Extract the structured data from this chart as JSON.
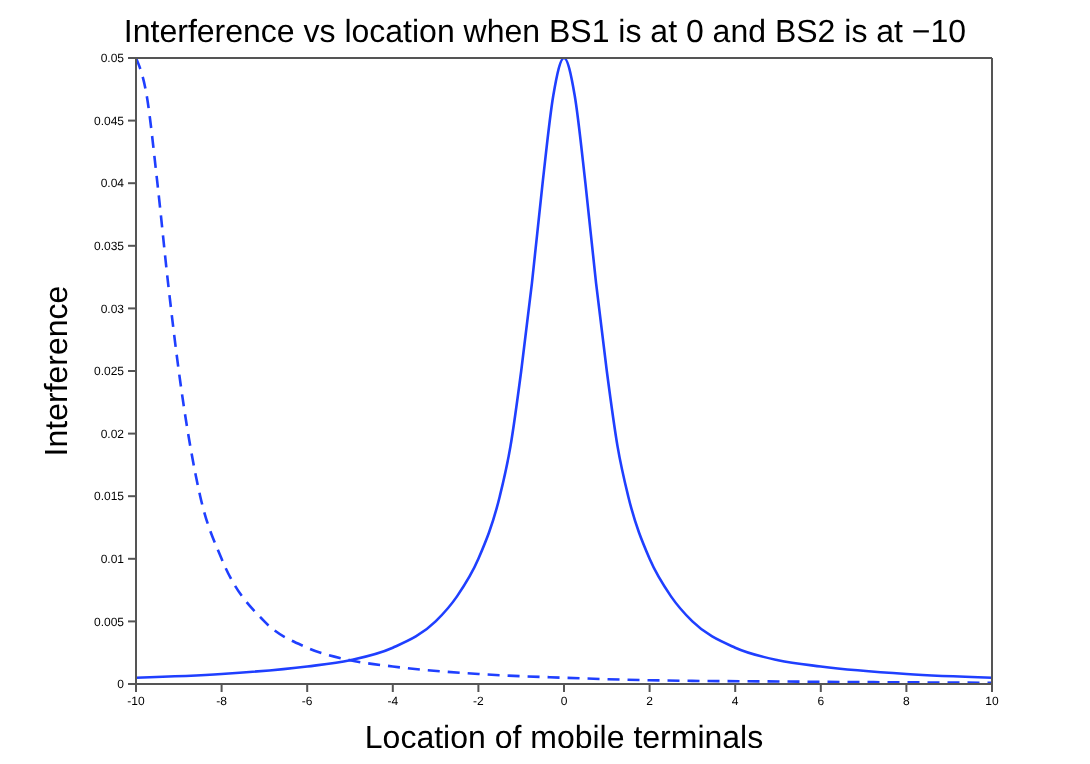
{
  "chart_data": {
    "type": "line",
    "title": "Interference vs location when BS1 is at 0 and BS2 is at −10",
    "xlabel": "Location of mobile terminals",
    "ylabel": "Interference",
    "xlim": [
      -10,
      10
    ],
    "xticks": [
      -10,
      -8,
      -6,
      -4,
      -2,
      0,
      2,
      4,
      6,
      8,
      10
    ],
    "ylim": [
      0,
      0.05
    ],
    "yticks": [
      0,
      0.005,
      0.01,
      0.015,
      0.02,
      0.025,
      0.03,
      0.035,
      0.04,
      0.045,
      0.05
    ],
    "grid": false,
    "marker": "none",
    "series": [
      {
        "color": "#1f3fff",
        "line_style": "solid",
        "x": [
          -10,
          -8,
          -6,
          -5,
          -4,
          -3,
          -2.5,
          -2,
          -1.5,
          -1.25,
          -1,
          -0.75,
          -0.5,
          -0.25,
          0,
          0.25,
          0.5,
          0.75,
          1,
          1.25,
          1.5,
          2,
          2.5,
          3,
          4,
          5,
          6,
          8,
          10
        ],
        "values": [
          0.0005,
          0.0008,
          0.0014,
          0.0019,
          0.0029,
          0.005,
          0.007,
          0.01,
          0.015,
          0.019,
          0.025,
          0.032,
          0.04,
          0.047,
          0.05,
          0.047,
          0.04,
          0.032,
          0.025,
          0.019,
          0.015,
          0.01,
          0.007,
          0.005,
          0.0029,
          0.0019,
          0.0014,
          0.0008,
          0.0005
        ]
      },
      {
        "color": "#1f3fff",
        "line_style": "dashed",
        "x": [
          -10,
          -9.75,
          -9.5,
          -9.25,
          -9,
          -8.5,
          -8,
          -7,
          -6,
          -5,
          -4,
          -2,
          0,
          2,
          5,
          10
        ],
        "values": [
          0.05,
          0.047,
          0.04,
          0.032,
          0.025,
          0.015,
          0.01,
          0.005,
          0.0029,
          0.0019,
          0.0014,
          0.0008,
          0.0005,
          0.0003,
          0.0002,
          0.0001
        ]
      }
    ]
  }
}
